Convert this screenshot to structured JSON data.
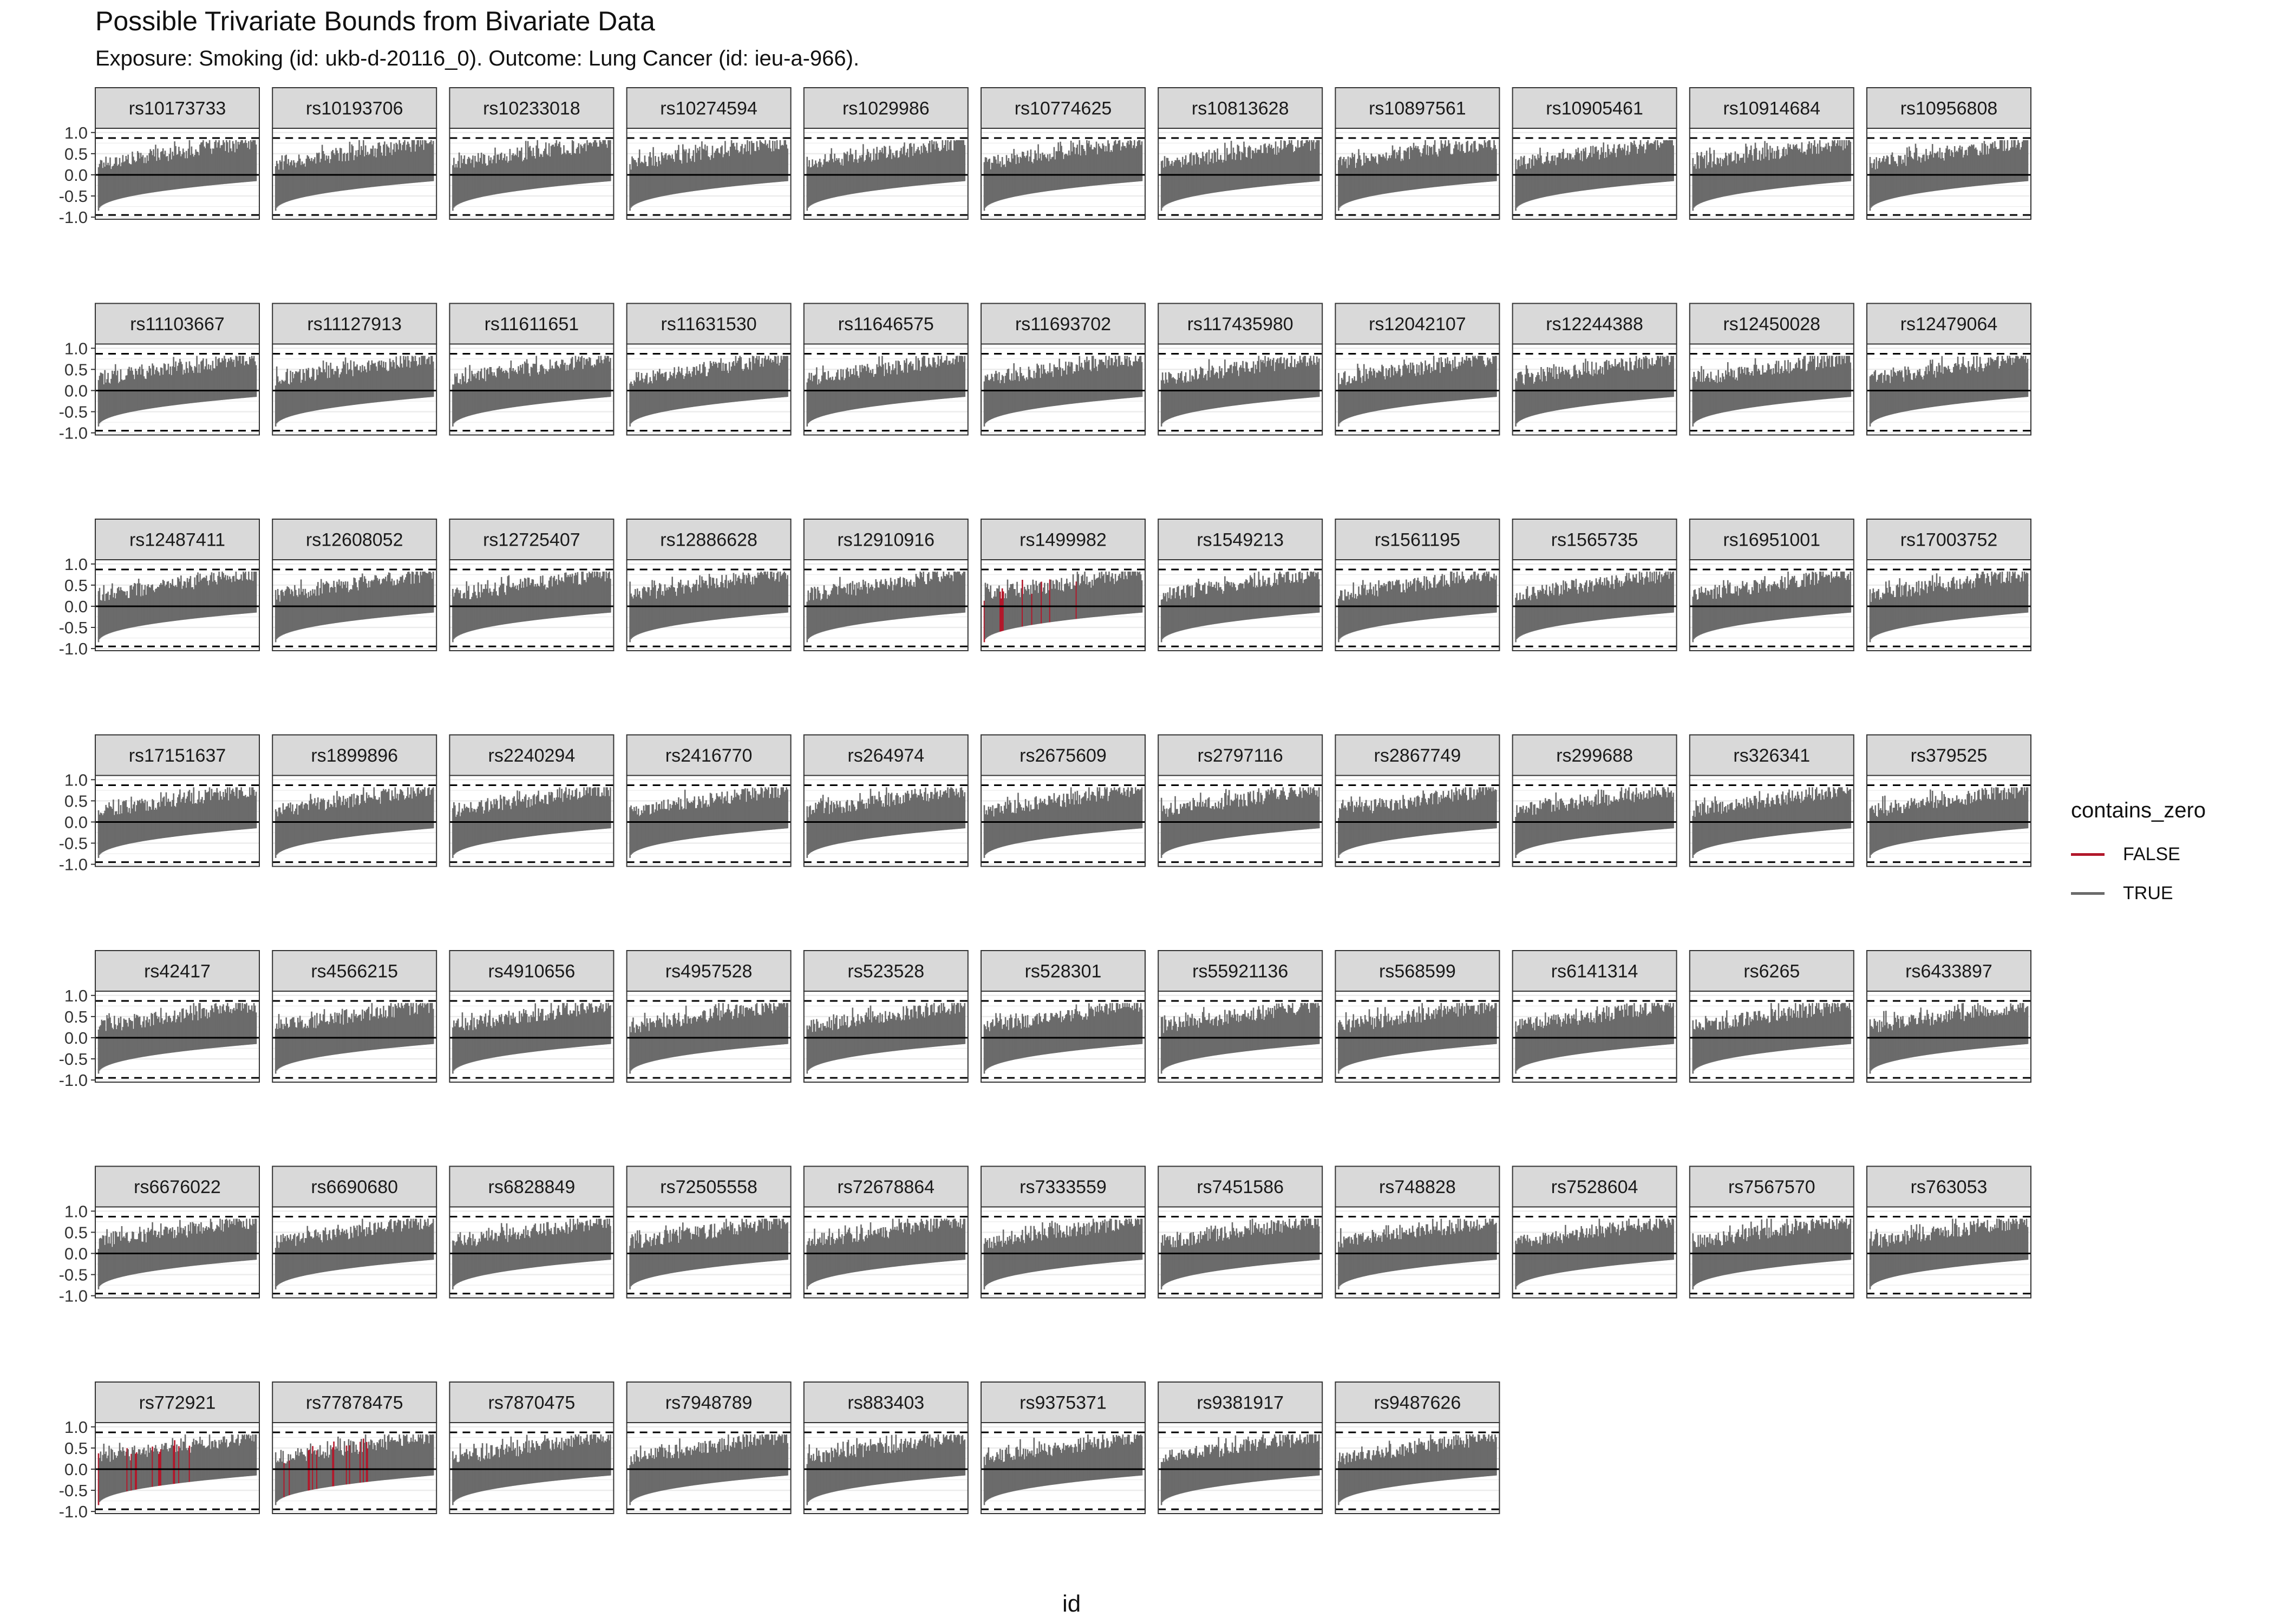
{
  "chart_data": {
    "type": "line",
    "title": "Possible Trivariate Bounds from Bivariate Data",
    "subtitle": "Exposure: Smoking (id: ukb-d-20116_0). Outcome: Lung Cancer (id: ieu-a-966).",
    "xlabel": "id",
    "ylabel": "",
    "ylim": [
      -1.05,
      1.1
    ],
    "yticks": [
      "1.0",
      "0.5",
      "0.0",
      "-0.5",
      "-1.0"
    ],
    "ytick_values": [
      1.0,
      0.5,
      0.0,
      -0.5,
      -1.0
    ],
    "reference_lines": {
      "solid": [
        0.0
      ],
      "dashed": [
        0.87,
        -0.95
      ]
    },
    "grid": true,
    "legend": {
      "title": "contains_zero",
      "position": "right",
      "entries": [
        {
          "label": "FALSE",
          "color": "#b2182b"
        },
        {
          "label": "TRUE",
          "color": "#6b6b6b"
        }
      ]
    },
    "series_description": {
      "lower_bound_start": -0.85,
      "lower_bound_end": -0.15,
      "upper_bound_start": 0.2,
      "upper_bound_end": 0.7
    },
    "panels": [
      "rs10173733",
      "rs10193706",
      "rs10233018",
      "rs10274594",
      "rs1029986",
      "rs10774625",
      "rs10813628",
      "rs10897561",
      "rs10905461",
      "rs10914684",
      "rs10956808",
      "rs11103667",
      "rs11127913",
      "rs11611651",
      "rs11631530",
      "rs11646575",
      "rs11693702",
      "rs117435980",
      "rs12042107",
      "rs12244388",
      "rs12450028",
      "rs12479064",
      "rs12487411",
      "rs12608052",
      "rs12725407",
      "rs12886628",
      "rs12910916",
      "rs1499982",
      "rs1549213",
      "rs1561195",
      "rs1565735",
      "rs16951001",
      "rs17003752",
      "rs17151637",
      "rs1899896",
      "rs2240294",
      "rs2416770",
      "rs264974",
      "rs2675609",
      "rs2797116",
      "rs2867749",
      "rs299688",
      "rs326341",
      "rs379525",
      "rs42417",
      "rs4566215",
      "rs4910656",
      "rs4957528",
      "rs523528",
      "rs528301",
      "rs55921136",
      "rs568599",
      "rs6141314",
      "rs6265",
      "rs6433897",
      "rs6676022",
      "rs6690680",
      "rs6828849",
      "rs72505558",
      "rs72678864",
      "rs7333559",
      "rs7451586",
      "rs748828",
      "rs7528604",
      "rs7567570",
      "rs763053",
      "rs772921",
      "rs77878475",
      "rs7870475",
      "rs7948789",
      "rs883403",
      "rs9375371",
      "rs9381917",
      "rs9487626"
    ],
    "panels_with_false": [
      "rs1499982",
      "rs772921",
      "rs77878475"
    ]
  },
  "colors": {
    "strip_bg": "#d9d9d9",
    "panel_border": "#333333",
    "grid": "#ebebeb",
    "bar_true": "#6b6b6b",
    "bar_false": "#b2182b"
  }
}
